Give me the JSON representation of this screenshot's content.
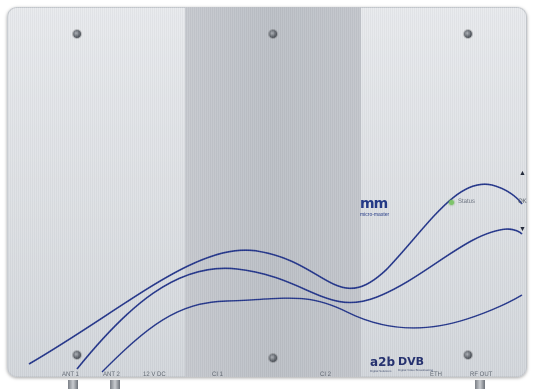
{
  "device": {
    "logo": {
      "mark": "mm",
      "subtitle": "micro-master"
    },
    "status_label": "Status",
    "ok_label": "OK",
    "up_arrow": "▲",
    "down_arrow": "▼",
    "ports": [
      "ANT 1",
      "ANT 2",
      "12 V DC",
      "CI 1",
      "CI 2",
      "ETH",
      "RF OUT"
    ],
    "brands": [
      {
        "name": "a2b",
        "tagline": "Digital Solutions"
      },
      {
        "name": "DVB",
        "tagline": "Digital Video Broadcasting"
      }
    ],
    "colors": {
      "wave": "#23358a",
      "panel": "#dfe2e6",
      "center": "#c1c4ca",
      "led": "#7ec56a"
    }
  }
}
